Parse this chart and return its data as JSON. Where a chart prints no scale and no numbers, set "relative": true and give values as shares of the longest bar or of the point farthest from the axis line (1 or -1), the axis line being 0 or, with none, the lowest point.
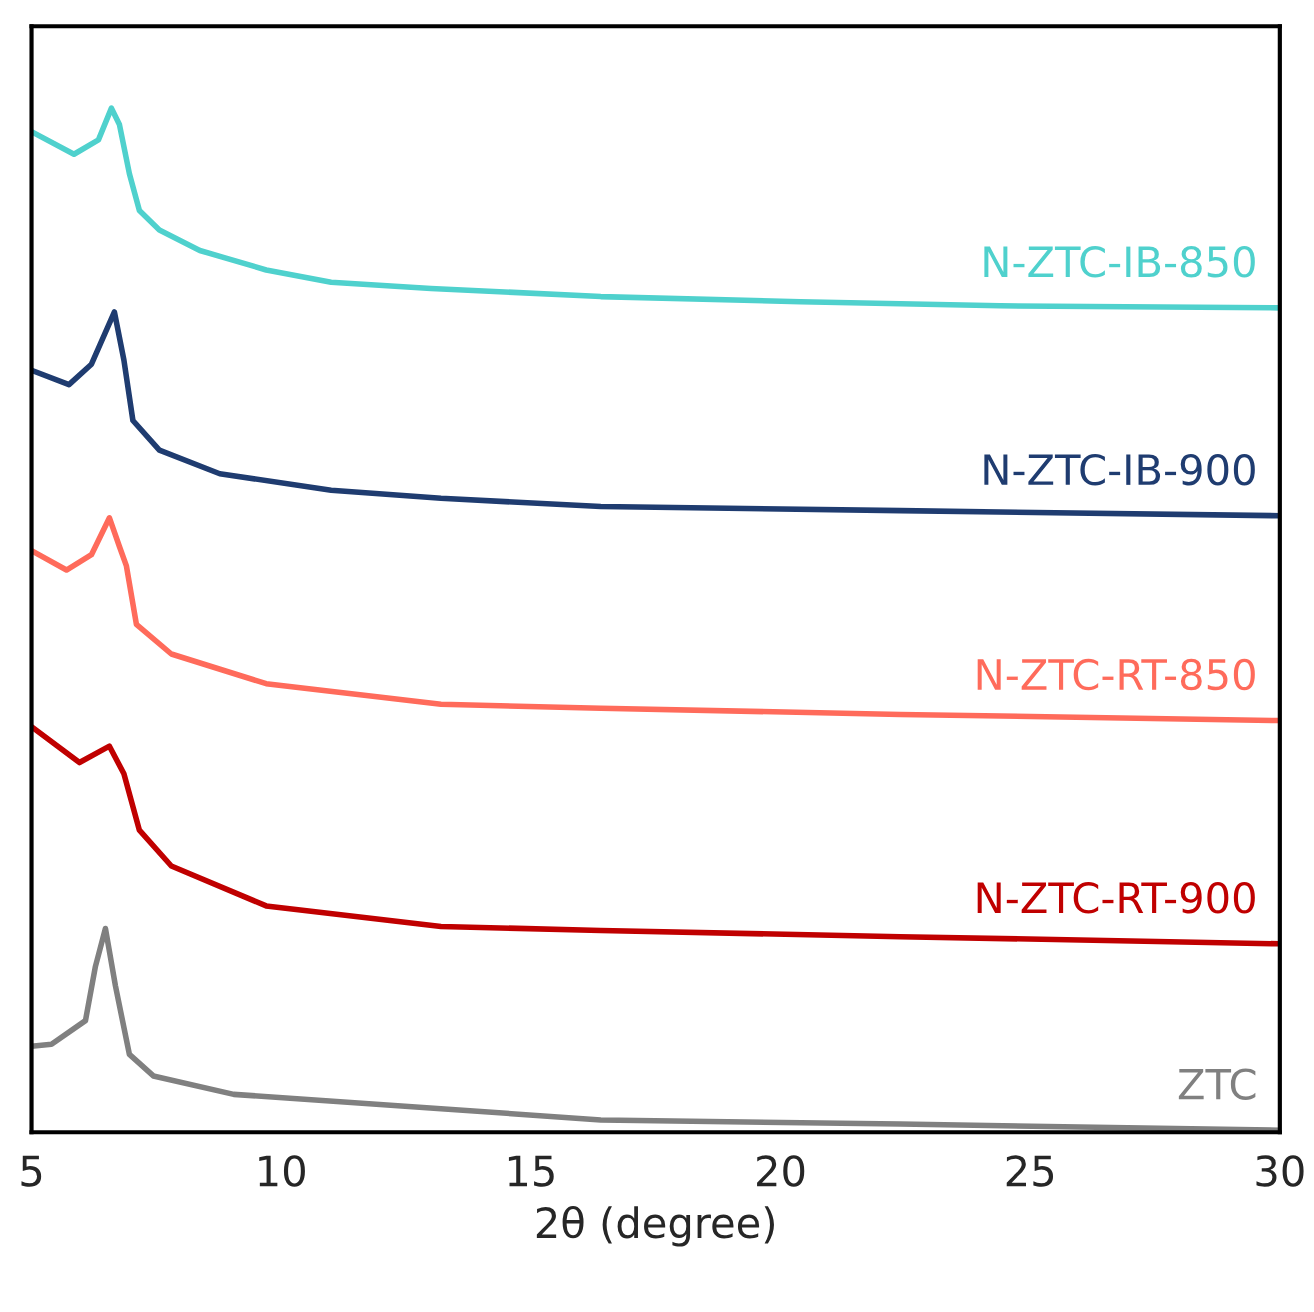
{
  "chart_data": {
    "type": "line",
    "relative": true,
    "xlabel": "2θ (degree)",
    "xlim": [
      5,
      30
    ],
    "xticks": [
      5,
      10,
      15,
      20,
      25,
      30
    ],
    "tick_labels": "x",
    "grid": false,
    "legend": false,
    "marker": "none",
    "line_style": "solid",
    "series": [
      {
        "name": "N-ZTC-IB-850",
        "color": "#4fd1cd",
        "x": [
          5,
          5.85,
          6.34,
          6.6,
          6.76,
          6.96,
          7.16,
          7.56,
          8.37,
          9.7,
          11,
          13,
          16.4,
          20.4,
          24.4,
          30
        ],
        "values": [
          0.977,
          0.955,
          0.969,
          1.0,
          0.984,
          0.936,
          0.9,
          0.881,
          0.861,
          0.842,
          0.83,
          0.824,
          0.816,
          0.811,
          0.807,
          0.805
        ]
      },
      {
        "name": "N-ZTC-IB-900",
        "color": "#1f3c70",
        "x": [
          5,
          5.75,
          6.2,
          6.66,
          6.85,
          7.03,
          7.56,
          8.77,
          11,
          13.2,
          16.4,
          22.4,
          30
        ],
        "values": [
          0.744,
          0.73,
          0.75,
          0.801,
          0.754,
          0.695,
          0.666,
          0.643,
          0.627,
          0.619,
          0.611,
          0.607,
          0.602
        ]
      },
      {
        "name": "N-ZTC-RT-850",
        "color": "#ff6b5b",
        "x": [
          5,
          5.7,
          6.2,
          6.56,
          6.76,
          6.9,
          7.1,
          7.8,
          9.7,
          13.2,
          16.4,
          22.4,
          30
        ],
        "values": [
          0.568,
          0.549,
          0.564,
          0.6,
          0.572,
          0.553,
          0.496,
          0.467,
          0.438,
          0.418,
          0.414,
          0.408,
          0.402
        ]
      },
      {
        "name": "N-ZTC-RT-900",
        "color": "#c00000",
        "x": [
          5,
          5.96,
          6.56,
          6.85,
          7.16,
          7.8,
          9.7,
          13.2,
          16.4,
          22.4,
          30
        ],
        "values": [
          0.396,
          0.361,
          0.377,
          0.35,
          0.295,
          0.26,
          0.221,
          0.201,
          0.197,
          0.191,
          0.184
        ]
      },
      {
        "name": "ZTC",
        "color": "#808080",
        "x": [
          5,
          5.4,
          6.08,
          6.28,
          6.48,
          6.68,
          6.96,
          7.44,
          9.05,
          13.2,
          16.4,
          22.4,
          30
        ],
        "values": [
          0.084,
          0.086,
          0.109,
          0.162,
          0.199,
          0.143,
          0.076,
          0.055,
          0.037,
          0.023,
          0.012,
          0.008,
          0.002
        ]
      }
    ]
  }
}
